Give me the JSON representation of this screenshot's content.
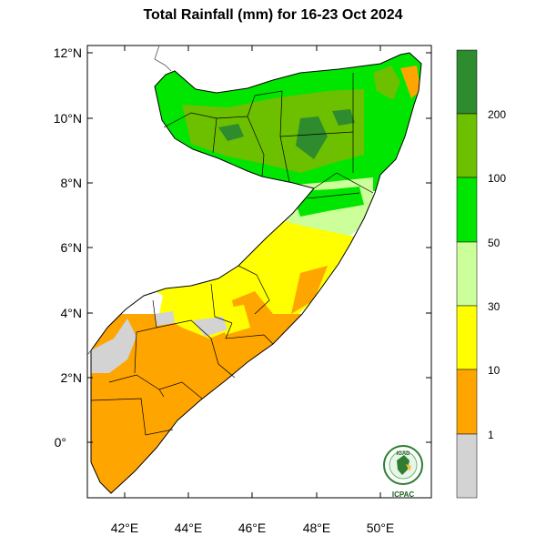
{
  "title": "Total Rainfall (mm) for 16-23 Oct 2024",
  "axes": {
    "y_ticks": [
      "12°N",
      "10°N",
      "8°N",
      "6°N",
      "4°N",
      "2°N",
      "0°"
    ],
    "x_ticks": [
      "42°E",
      "44°E",
      "46°E",
      "48°E",
      "50°E"
    ]
  },
  "colorbar": {
    "labels": [
      "200",
      "100",
      "50",
      "30",
      "10",
      "1"
    ],
    "colors": [
      "#2e8b2e",
      "#6cc000",
      "#00e600",
      "#ccff99",
      "#ffff00",
      "#ffa500",
      "#d3d3d3"
    ]
  },
  "logo": {
    "top_text": "IGAD",
    "bottom_text": "ICPAC"
  }
}
